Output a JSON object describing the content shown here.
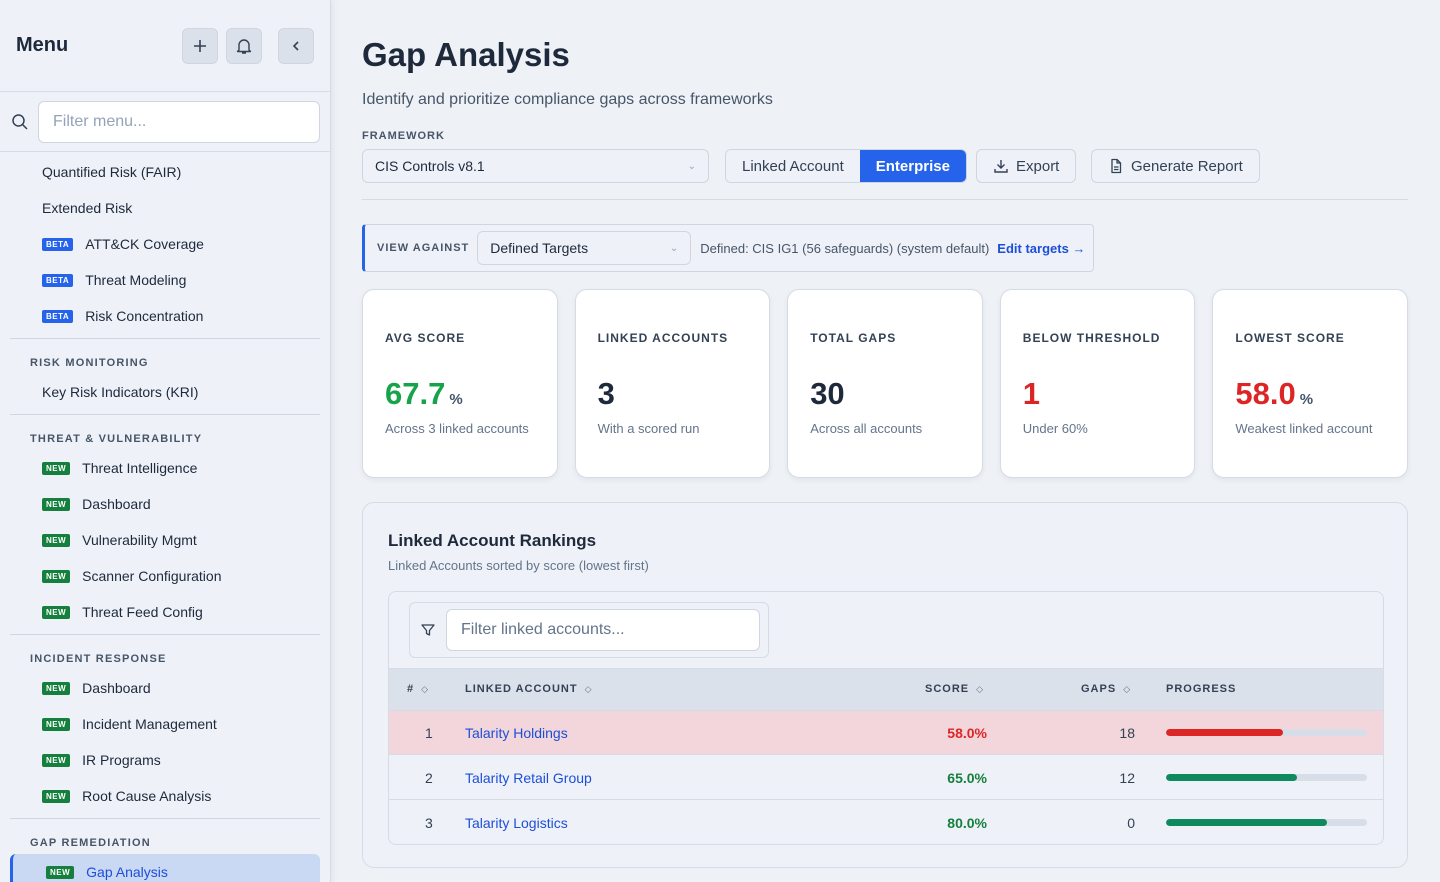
{
  "sidebar": {
    "title": "Menu",
    "filter_placeholder": "Filter menu...",
    "groups": [
      {
        "heading": "",
        "items": [
          {
            "label": "Quantified Risk (FAIR)",
            "badge": ""
          },
          {
            "label": "Extended Risk",
            "badge": ""
          },
          {
            "label": "ATT&CK Coverage",
            "badge": "BETA"
          },
          {
            "label": "Threat Modeling",
            "badge": "BETA"
          },
          {
            "label": "Risk Concentration",
            "badge": "BETA"
          }
        ]
      },
      {
        "heading": "RISK MONITORING",
        "items": [
          {
            "label": "Key Risk Indicators (KRI)",
            "badge": ""
          }
        ]
      },
      {
        "heading": "THREAT & VULNERABILITY",
        "items": [
          {
            "label": "Threat Intelligence",
            "badge": "NEW"
          },
          {
            "label": "Dashboard",
            "badge": "NEW"
          },
          {
            "label": "Vulnerability Mgmt",
            "badge": "NEW"
          },
          {
            "label": "Scanner Configuration",
            "badge": "NEW"
          },
          {
            "label": "Threat Feed Config",
            "badge": "NEW"
          }
        ]
      },
      {
        "heading": "INCIDENT RESPONSE",
        "items": [
          {
            "label": "Dashboard",
            "badge": "NEW"
          },
          {
            "label": "Incident Management",
            "badge": "NEW"
          },
          {
            "label": "IR Programs",
            "badge": "NEW"
          },
          {
            "label": "Root Cause Analysis",
            "badge": "NEW"
          }
        ]
      },
      {
        "heading": "GAP REMEDIATION",
        "items": [
          {
            "label": "Gap Analysis",
            "badge": "NEW",
            "active": true
          }
        ]
      }
    ]
  },
  "page": {
    "title": "Gap Analysis",
    "subtitle": "Identify and prioritize compliance gaps across frameworks",
    "framework_label": "FRAMEWORK",
    "framework_value": "CIS Controls v8.1",
    "scope_options": [
      "Linked Account",
      "Enterprise"
    ],
    "scope_selected": "Enterprise",
    "export_label": "Export",
    "report_label": "Generate Report"
  },
  "view_against": {
    "label": "VIEW AGAINST",
    "value": "Defined Targets",
    "defined_text": "Defined: CIS IG1 (56 safeguards) (system default)",
    "edit_label": "Edit targets →"
  },
  "cards": [
    {
      "label": "AVG SCORE",
      "value": "67.7",
      "unit": "%",
      "tone": "green",
      "desc": "Across 3 linked accounts"
    },
    {
      "label": "LINKED ACCOUNTS",
      "value": "3",
      "unit": "",
      "tone": "",
      "desc": "With a scored run"
    },
    {
      "label": "TOTAL GAPS",
      "value": "30",
      "unit": "",
      "tone": "",
      "desc": "Across all accounts"
    },
    {
      "label": "BELOW THRESHOLD",
      "value": "1",
      "unit": "",
      "tone": "red",
      "desc": "Under 60%"
    },
    {
      "label": "LOWEST SCORE",
      "value": "58.0",
      "unit": "%",
      "tone": "red",
      "desc": "Weakest linked account"
    }
  ],
  "rankings": {
    "title": "Linked Account Rankings",
    "subtitle": "Linked Accounts sorted by score (lowest first)",
    "filter_placeholder": "Filter linked accounts...",
    "columns": {
      "rank": "#",
      "account": "LINKED ACCOUNT",
      "score": "SCORE",
      "gaps": "GAPS",
      "progress": "PROGRESS"
    },
    "rows": [
      {
        "rank": "1",
        "name": "Talarity Holdings",
        "score": "58.0%",
        "gaps": "18",
        "progress": 0.58,
        "tone": "red"
      },
      {
        "rank": "2",
        "name": "Talarity Retail Group",
        "score": "65.0%",
        "gaps": "12",
        "progress": 0.65,
        "tone": "green"
      },
      {
        "rank": "3",
        "name": "Talarity Logistics",
        "score": "80.0%",
        "gaps": "0",
        "progress": 0.8,
        "tone": "green"
      }
    ]
  }
}
